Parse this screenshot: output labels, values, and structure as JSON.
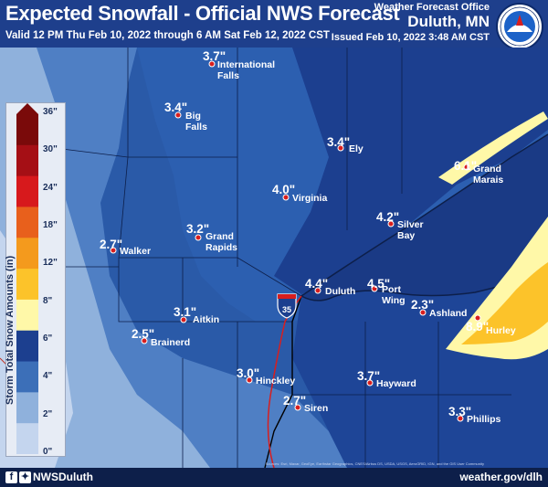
{
  "header": {
    "title": "Expected Snowfall - Official NWS Forecast",
    "valid": "Valid 12 PM Thu Feb 10, 2022 through 6 AM Sat Feb 12, 2022 CST",
    "office": "Weather Forecast Office",
    "location": "Duluth, MN",
    "issued": "Issued Feb 10, 2022 3:48 AM CST",
    "logo_icon": "nws-logo-icon"
  },
  "legend": {
    "title": "Storm Total Snow Amounts (in)",
    "ticks": [
      "36\"",
      "30\"",
      "24\"",
      "18\"",
      "12\"",
      "8\"",
      "6\"",
      "4\"",
      "2\"",
      "0\""
    ],
    "colors": [
      "#7a0a0a",
      "#a50f15",
      "#d7191c",
      "#e8601c",
      "#f49a1d",
      "#fcc32a",
      "#fff8a8",
      "#1c3f8f",
      "#3c6fb8",
      "#8fb1dc",
      "#c4d5ee"
    ]
  },
  "highway": {
    "shield": "35"
  },
  "cities": [
    {
      "name": "International Falls",
      "label_lines": [
        "International",
        "Falls"
      ],
      "amount": "3.7\""
    },
    {
      "name": "Big Falls",
      "label_lines": [
        "Big",
        "Falls"
      ],
      "amount": "3.4\""
    },
    {
      "name": "Ely",
      "label_lines": [
        "Ely"
      ],
      "amount": "3.4\""
    },
    {
      "name": "Grand Marais",
      "label_lines": [
        "Grand",
        "Marais"
      ],
      "amount": "6.1\""
    },
    {
      "name": "Virginia",
      "label_lines": [
        "Virginia"
      ],
      "amount": "4.0\""
    },
    {
      "name": "Silver Bay",
      "label_lines": [
        "Silver",
        "Bay"
      ],
      "amount": "4.2\""
    },
    {
      "name": "Grand Rapids",
      "label_lines": [
        "Grand",
        "Rapids"
      ],
      "amount": "3.2\""
    },
    {
      "name": "Walker",
      "label_lines": [
        "Walker"
      ],
      "amount": "2.7\""
    },
    {
      "name": "Duluth",
      "label_lines": [
        "Duluth"
      ],
      "amount": "4.4\""
    },
    {
      "name": "Port Wing",
      "label_lines": [
        "Port",
        "Wing"
      ],
      "amount": "4.5\""
    },
    {
      "name": "Ashland",
      "label_lines": [
        "Ashland"
      ],
      "amount": "2.3\""
    },
    {
      "name": "Hurley",
      "label_lines": [
        "Hurley"
      ],
      "amount": "8.9\""
    },
    {
      "name": "Aitkin",
      "label_lines": [
        "Aitkin"
      ],
      "amount": "3.1\""
    },
    {
      "name": "Brainerd",
      "label_lines": [
        "Brainerd"
      ],
      "amount": "2.5\""
    },
    {
      "name": "Hinckley",
      "label_lines": [
        "Hinckley"
      ],
      "amount": "3.0\""
    },
    {
      "name": "Hayward",
      "label_lines": [
        "Hayward"
      ],
      "amount": "3.7\""
    },
    {
      "name": "Siren",
      "label_lines": [
        "Siren"
      ],
      "amount": "2.7\""
    },
    {
      "name": "Phillips",
      "label_lines": [
        "Phillips"
      ],
      "amount": "3.3\""
    }
  ],
  "footer": {
    "social_handle": "NWSDuluth",
    "social_icons": [
      "facebook-icon",
      "twitter-icon"
    ],
    "website": "weather.gov/dlh",
    "credits": "Sources: Esri, Maxar, GeoEye, Earthstar Geographics, CNES/Airbus DS, USDA, USGS, AeroGRID, IGN, and the GIS User Community"
  }
}
